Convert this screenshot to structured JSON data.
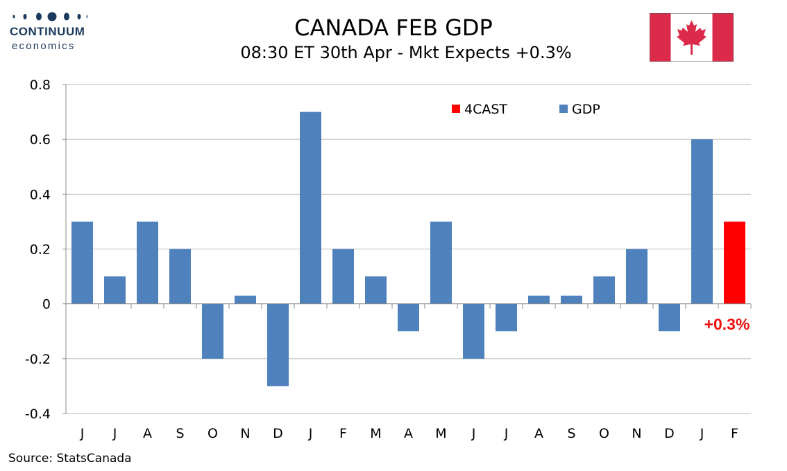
{
  "brand": {
    "name": "CONTINUUM",
    "sub": "economics"
  },
  "header": {
    "title": "CANADA FEB GDP",
    "subtitle": "08:30 ET 30th Apr - Mkt Expects +0.3%"
  },
  "flag_icon": "canada-flag-icon",
  "colors": {
    "gdp": "#4f81bd",
    "forecast": "#ff0000",
    "forecast_label": "#ee1111",
    "gridline": "#b7b7b7"
  },
  "chart_data": {
    "type": "bar",
    "title": "CANADA FEB GDP",
    "subtitle": "08:30 ET 30th Apr - Mkt Expects +0.3%",
    "categories": [
      "J",
      "J",
      "A",
      "S",
      "O",
      "N",
      "D",
      "J",
      "F",
      "M",
      "A",
      "M",
      "J",
      "J",
      "A",
      "S",
      "O",
      "N",
      "D",
      "J",
      "F"
    ],
    "series": [
      {
        "name": "4CAST",
        "color": "#ff0000",
        "values": [
          null,
          null,
          null,
          null,
          null,
          null,
          null,
          null,
          null,
          null,
          null,
          null,
          null,
          null,
          null,
          null,
          null,
          null,
          null,
          null,
          0.3
        ]
      },
      {
        "name": "GDP",
        "color": "#4f81bd",
        "values": [
          0.3,
          0.1,
          0.3,
          0.2,
          -0.2,
          0.03,
          -0.3,
          0.7,
          0.2,
          0.1,
          -0.1,
          0.3,
          -0.2,
          -0.1,
          0.03,
          0.03,
          0.1,
          0.2,
          -0.1,
          0.6,
          null
        ]
      }
    ],
    "ylim": [
      -0.4,
      0.8
    ],
    "yticks": [
      "-0.4",
      "-0.2",
      "0",
      "0.2",
      "0.4",
      "0.6",
      "0.8"
    ],
    "grid": true,
    "legend_position": "top-right",
    "annotation": "+0.3%",
    "source": "Source: StatsCanada"
  }
}
